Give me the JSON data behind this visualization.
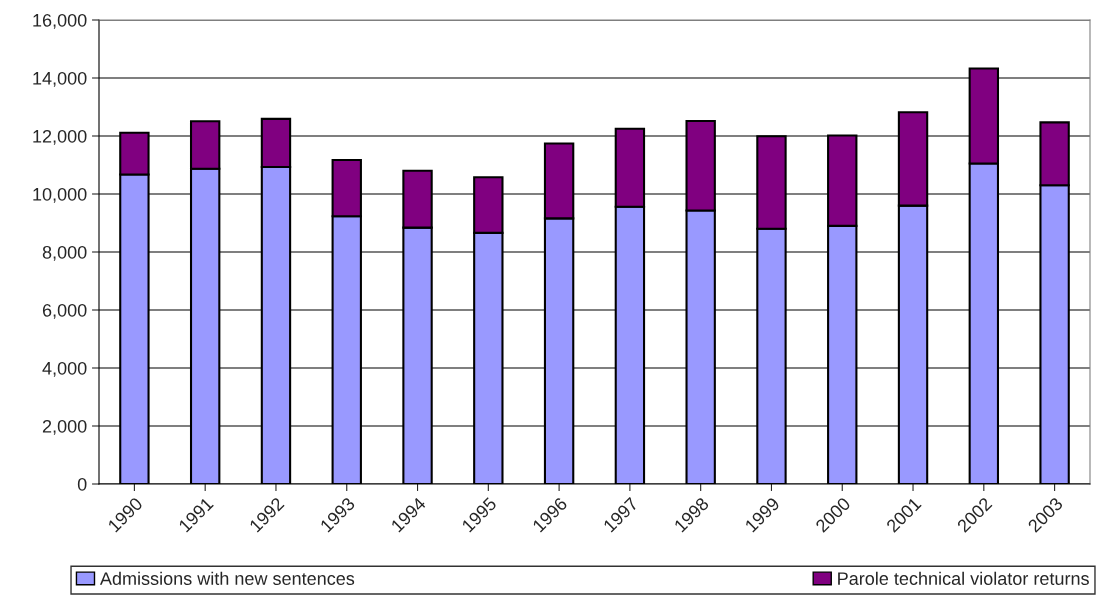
{
  "chart_data": {
    "type": "bar",
    "stacked": true,
    "categories": [
      "1990",
      "1991",
      "1992",
      "1993",
      "1994",
      "1995",
      "1996",
      "1997",
      "1998",
      "1999",
      "2000",
      "2001",
      "2002",
      "2003"
    ],
    "series": [
      {
        "name": "Admissions with new sentences",
        "color": "#9999ff",
        "values": [
          10670,
          10870,
          10930,
          9230,
          8840,
          8660,
          9160,
          9560,
          9430,
          8800,
          8900,
          9600,
          11050,
          10300
        ]
      },
      {
        "name": "Parole technical violator returns",
        "color": "#800080",
        "values": [
          1440,
          1640,
          1660,
          1940,
          1960,
          1920,
          2580,
          2690,
          3090,
          3190,
          3120,
          3220,
          3280,
          2170
        ]
      }
    ],
    "ylim": [
      0,
      16000
    ],
    "yticks": [
      {
        "value": 0,
        "label": "0"
      },
      {
        "value": 2000,
        "label": "2,000"
      },
      {
        "value": 4000,
        "label": "4,000"
      },
      {
        "value": 6000,
        "label": "6,000"
      },
      {
        "value": 8000,
        "label": "8,000"
      },
      {
        "value": 10000,
        "label": "10,000"
      },
      {
        "value": 12000,
        "label": "12,000"
      },
      {
        "value": 14000,
        "label": "14,000"
      },
      {
        "value": 16000,
        "label": "16,000"
      }
    ],
    "grid": "y",
    "legend": "bottom"
  }
}
